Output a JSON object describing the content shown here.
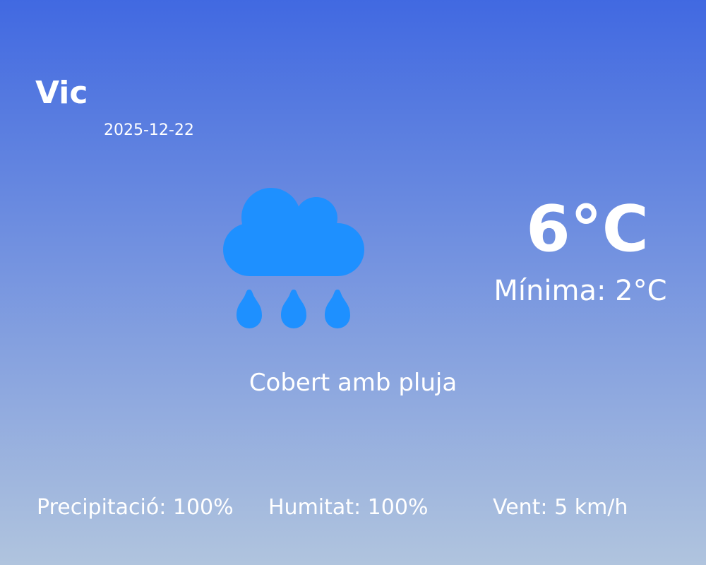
{
  "location": {
    "city": "Vic",
    "date": "2025-12-22"
  },
  "current": {
    "temperature": "6°C",
    "minimum": "Mínima: 2°C",
    "description": "Cobert amb pluja",
    "icon": "cloud-rain-icon"
  },
  "stats": {
    "precipitation": "Precipitació: 100%",
    "humidity": "Humitat: 100%",
    "wind": "Vent: 5 km/h"
  },
  "colors": {
    "gradient_top": "#4169E1",
    "gradient_bottom": "#B0C4DE",
    "icon": "#1E90FF",
    "text": "#FFFFFF"
  }
}
